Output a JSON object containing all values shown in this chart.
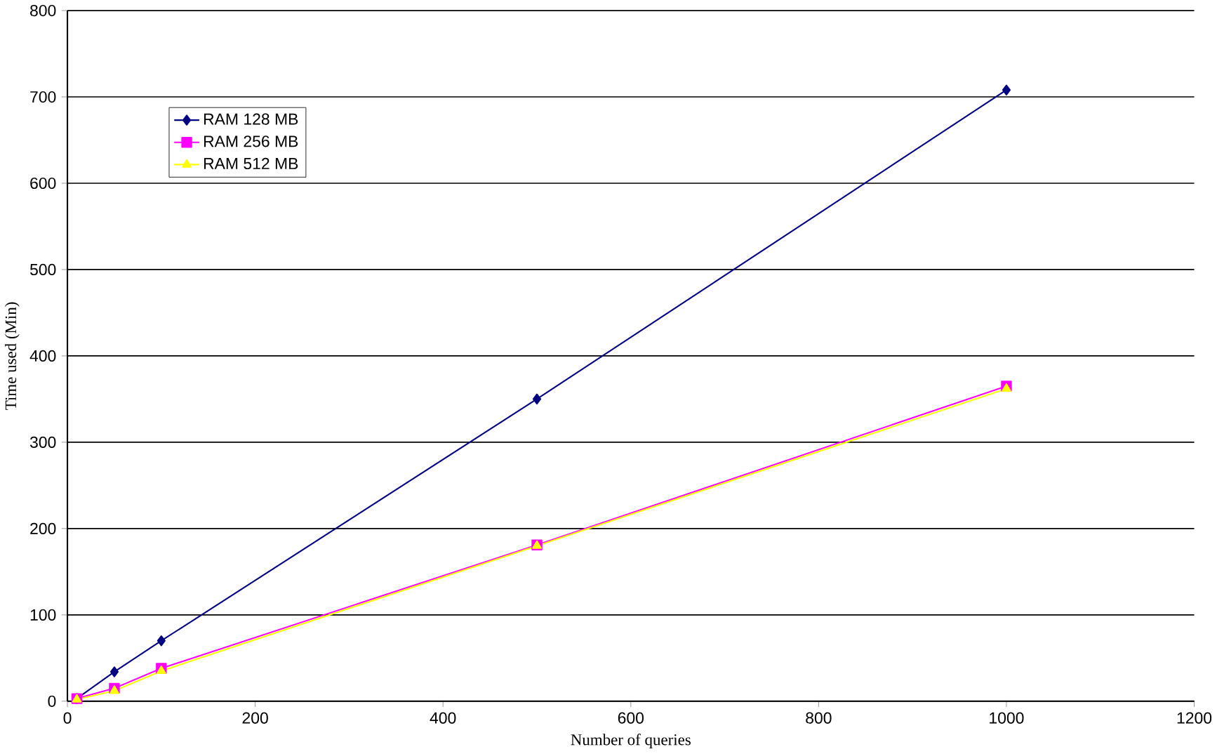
{
  "chart_data": {
    "type": "line",
    "xlabel": "Number of queries",
    "ylabel": "Time used (Min)",
    "x": [
      10,
      50,
      100,
      500,
      1000
    ],
    "series": [
      {
        "name": "RAM 128 MB",
        "color": "#000080",
        "marker": "diamond",
        "values": [
          3,
          34,
          70,
          350,
          708
        ]
      },
      {
        "name": "RAM 256 MB",
        "color": "#ff00ff",
        "marker": "square",
        "values": [
          3,
          15,
          38,
          181,
          365
        ]
      },
      {
        "name": "RAM 512 MB",
        "color": "#ffff00",
        "marker": "triangle",
        "values": [
          2,
          12,
          35,
          180,
          362
        ]
      }
    ],
    "xlim": [
      0,
      1200
    ],
    "xticks": [
      0,
      200,
      400,
      600,
      800,
      1000,
      1200
    ],
    "ylim": [
      0,
      800
    ],
    "yticks": [
      0,
      100,
      200,
      300,
      400,
      500,
      600,
      700,
      800
    ],
    "grid": "y",
    "legend": "top left"
  }
}
